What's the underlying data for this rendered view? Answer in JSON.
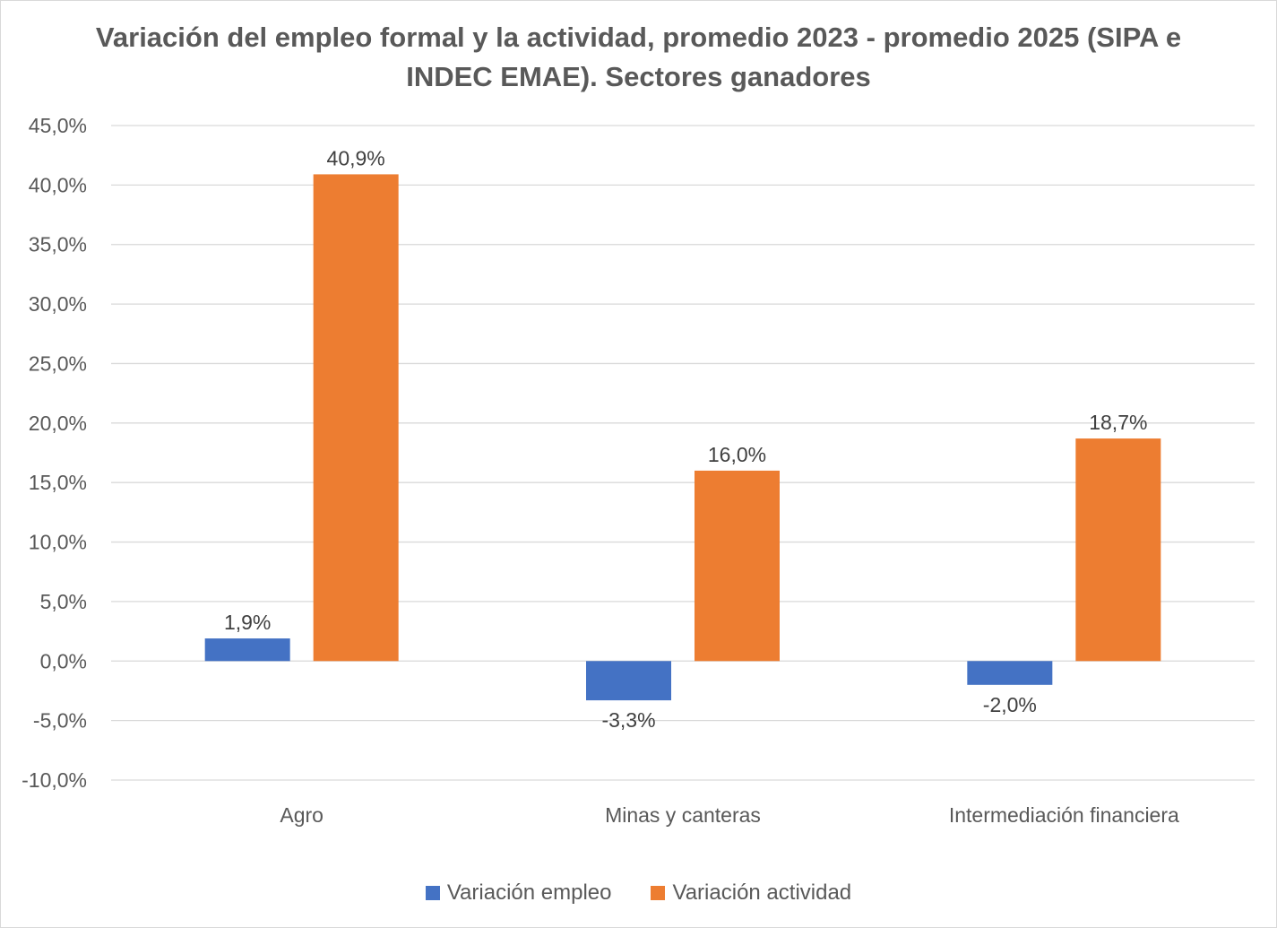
{
  "chart_data": {
    "type": "bar",
    "title": "Variación del empleo formal y la actividad, promedio 2023 - promedio 2025 (SIPA e INDEC EMAE). Sectores ganadores",
    "categories": [
      "Agro",
      "Minas y canteras",
      "Intermediación financiera"
    ],
    "series": [
      {
        "name": "Variación empleo",
        "color": "#4472C4",
        "values": [
          1.9,
          -3.3,
          -2.0
        ],
        "labels": [
          "1,9%",
          "-3,3%",
          "-2,0%"
        ]
      },
      {
        "name": "Variación actividad",
        "color": "#ED7D31",
        "values": [
          40.9,
          16.0,
          18.7
        ],
        "labels": [
          "40,9%",
          "16,0%",
          "18,7%"
        ]
      }
    ],
    "ylim": [
      -10,
      45
    ],
    "ytick_step": 5,
    "yticks": [
      "45,0%",
      "40,0%",
      "35,0%",
      "30,0%",
      "25,0%",
      "20,0%",
      "15,0%",
      "10,0%",
      "5,0%",
      "0,0%",
      "-5,0%",
      "-10,0%"
    ],
    "grid": true,
    "legend_position": "bottom",
    "xlabel": "",
    "ylabel": ""
  }
}
